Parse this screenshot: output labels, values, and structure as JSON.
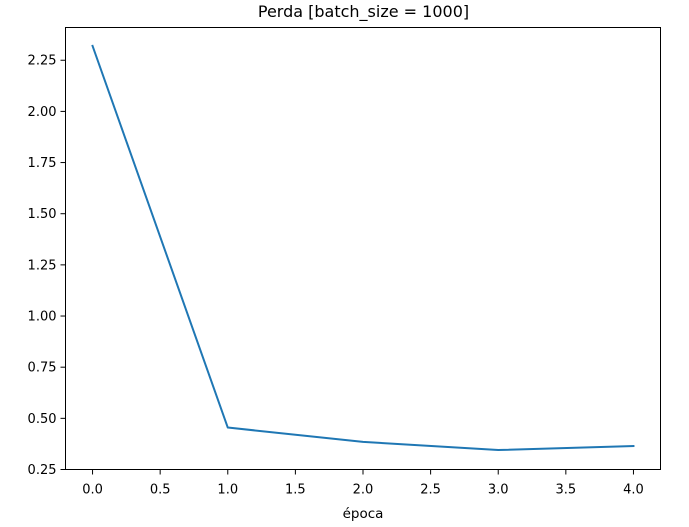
{
  "chart_data": {
    "type": "line",
    "title": "Perda [batch_size = 1000]",
    "xlabel": "época",
    "ylabel": "",
    "xlim": [
      -0.2,
      4.2
    ],
    "ylim": [
      0.25,
      2.41
    ],
    "x_ticks": [
      0.0,
      0.5,
      1.0,
      1.5,
      2.0,
      2.5,
      3.0,
      3.5,
      4.0
    ],
    "x_tick_labels": [
      "0.0",
      "0.5",
      "1.0",
      "1.5",
      "2.0",
      "2.5",
      "3.0",
      "3.5",
      "4.0"
    ],
    "y_ticks": [
      0.25,
      0.5,
      0.75,
      1.0,
      1.25,
      1.5,
      1.75,
      2.0,
      2.25
    ],
    "y_tick_labels": [
      "0.25",
      "0.50",
      "0.75",
      "1.00",
      "1.25",
      "1.50",
      "1.75",
      "2.00",
      "2.25"
    ],
    "grid": false,
    "series": [
      {
        "color": "#1f77b4",
        "x": [
          0,
          1,
          2,
          3,
          4
        ],
        "y": [
          2.32,
          0.455,
          0.385,
          0.345,
          0.365
        ]
      }
    ]
  }
}
